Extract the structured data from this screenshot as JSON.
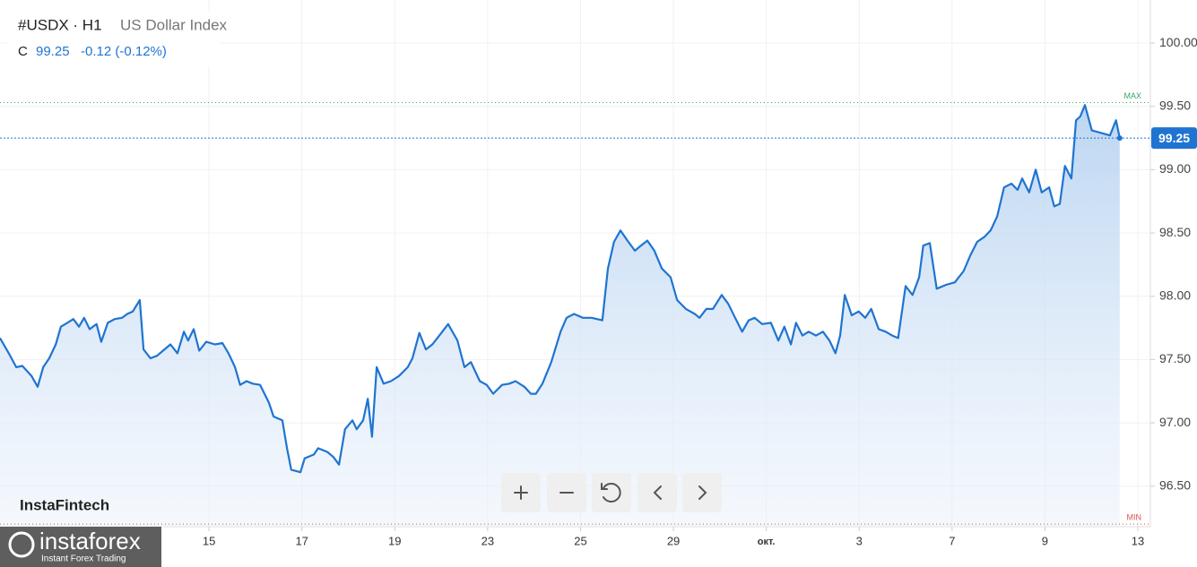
{
  "header": {
    "symbol": "#USDX · H1",
    "name": "US Dollar Index",
    "close_label": "C",
    "change": "-0.12 (-0.12%)"
  },
  "branding": {
    "watermark": "InstaFintech",
    "logo": "instaforex",
    "tagline": "Instant Forex Trading"
  },
  "chart_data": {
    "type": "line",
    "color": "#1f74d1",
    "grid": true,
    "x": [
      0,
      0.19,
      0.35,
      0.48,
      0.68,
      0.81,
      0.93,
      1.06,
      1.2,
      1.31,
      1.45,
      1.58,
      1.7,
      1.81,
      1.93,
      2.08,
      2.18,
      2.32,
      2.47,
      2.63,
      2.74,
      2.86,
      3.01,
      3.09,
      3.24,
      3.38,
      3.51,
      3.67,
      3.82,
      3.96,
      4.05,
      4.17,
      4.29,
      4.44,
      4.63,
      4.79,
      4.92,
      5.06,
      5.17,
      5.31,
      5.44,
      5.6,
      5.79,
      5.89,
      6.08,
      6.18,
      6.27,
      6.47,
      6.56,
      6.76,
      6.85,
      7.05,
      7.18,
      7.3,
      7.43,
      7.59,
      7.68,
      7.82,
      7.92,
      8.01,
      8.11,
      8.26,
      8.42,
      8.59,
      8.78,
      8.88,
      9.03,
      9.17,
      9.31,
      9.46,
      9.65,
      9.85,
      10,
      10.14,
      10.33,
      10.48,
      10.62,
      10.81,
      10.97,
      11.1,
      11.29,
      11.43,
      11.54,
      11.68,
      11.87,
      12.07,
      12.2,
      12.36,
      12.55,
      12.74,
      12.97,
      13.09,
      13.22,
      13.36,
      13.51,
      13.67,
      13.8,
      13.94,
      14.09,
      14.25,
      14.44,
      14.58,
      14.77,
      14.96,
      15.06,
      15.21,
      15.35,
      15.54,
      15.68,
      15.83,
      15.98,
      16.12,
      16.25,
      16.41,
      16.6,
      16.76,
      16.89,
      17.03,
      17.14,
      17.28,
      17.41,
      17.57,
      17.72,
      17.86,
      17.99,
      18.09,
      18.19,
      18.34,
      18.49,
      18.63,
      18.76,
      18.92,
      19.07,
      19.21,
      19.34,
      19.5,
      19.65,
      19.79,
      19.88,
      20.02,
      20.17,
      20.37,
      20.56,
      20.75,
      20.89,
      21.04,
      21.2,
      21.33,
      21.47,
      21.62,
      21.78,
      21.91,
      22.01,
      22.16,
      22.3,
      22.43,
      22.59,
      22.7,
      22.82,
      22.93,
      23.07,
      23.17,
      23.26,
      23.36,
      23.51,
      23.71,
      23.9,
      24.03,
      24.11
    ],
    "values": [
      97.67,
      97.55,
      97.44,
      97.45,
      97.37,
      97.285,
      97.44,
      97.51,
      97.62,
      97.76,
      97.79,
      97.82,
      97.76,
      97.83,
      97.74,
      97.78,
      97.64,
      97.79,
      97.82,
      97.83,
      97.86,
      97.88,
      97.97,
      97.58,
      97.51,
      97.53,
      97.57,
      97.62,
      97.55,
      97.72,
      97.65,
      97.74,
      97.57,
      97.64,
      97.62,
      97.63,
      97.55,
      97.44,
      97.3,
      97.33,
      97.31,
      97.3,
      97.16,
      97.05,
      97.02,
      96.8,
      96.63,
      96.61,
      96.72,
      96.75,
      96.8,
      96.77,
      96.73,
      96.67,
      96.95,
      97.02,
      96.95,
      97.02,
      97.19,
      96.89,
      97.44,
      97.31,
      97.33,
      97.37,
      97.44,
      97.51,
      97.71,
      97.58,
      97.62,
      97.69,
      97.78,
      97.65,
      97.44,
      97.48,
      97.33,
      97.3,
      97.23,
      97.3,
      97.31,
      97.33,
      97.285,
      97.23,
      97.23,
      97.31,
      97.48,
      97.72,
      97.83,
      97.86,
      97.83,
      97.83,
      97.81,
      98.22,
      98.43,
      98.52,
      98.44,
      98.36,
      98.4,
      98.44,
      98.36,
      98.22,
      98.15,
      97.97,
      97.9,
      97.86,
      97.83,
      97.9,
      97.9,
      98.01,
      97.94,
      97.83,
      97.72,
      97.81,
      97.83,
      97.78,
      97.79,
      97.65,
      97.76,
      97.62,
      97.79,
      97.69,
      97.72,
      97.69,
      97.72,
      97.65,
      97.55,
      97.69,
      98.01,
      97.85,
      97.88,
      97.83,
      97.9,
      97.74,
      97.72,
      97.69,
      97.67,
      98.08,
      98.01,
      98.15,
      98.4,
      98.42,
      98.06,
      98.09,
      98.11,
      98.2,
      98.32,
      98.43,
      98.47,
      98.52,
      98.63,
      98.86,
      98.89,
      98.84,
      98.93,
      98.82,
      99.0,
      98.82,
      98.86,
      98.71,
      98.73,
      99.03,
      98.93,
      99.39,
      99.42,
      99.51,
      99.31,
      99.29,
      99.27,
      99.39,
      99.25
    ],
    "last": 99.25,
    "max": {
      "value": 99.53,
      "label": "MAX"
    },
    "min": {
      "value": 96.2,
      "label": "MIN"
    },
    "xlim": [
      0,
      24.77
    ],
    "xticks": [
      {
        "value": 4.5,
        "label": "15"
      },
      {
        "value": 6.5,
        "label": "17"
      },
      {
        "value": 8.5,
        "label": "19"
      },
      {
        "value": 10.5,
        "label": "23"
      },
      {
        "value": 12.5,
        "label": "25"
      },
      {
        "value": 14.5,
        "label": "29"
      },
      {
        "value": 16.5,
        "label": "окт."
      },
      {
        "value": 18.5,
        "label": "3"
      },
      {
        "value": 20.5,
        "label": "7"
      },
      {
        "value": 22.5,
        "label": "9"
      },
      {
        "value": 24.5,
        "label": "13"
      }
    ],
    "ylim": [
      96.18,
      100.34
    ],
    "yticks": [
      {
        "value": 96.5,
        "label": "96.50"
      },
      {
        "value": 97,
        "label": "97.00"
      },
      {
        "value": 97.5,
        "label": "97.50"
      },
      {
        "value": 98,
        "label": "98.00"
      },
      {
        "value": 98.5,
        "label": "98.50"
      },
      {
        "value": 99,
        "label": "99.00"
      },
      {
        "value": 99.5,
        "label": "99.50"
      },
      {
        "value": 100,
        "label": "100.00"
      }
    ]
  }
}
